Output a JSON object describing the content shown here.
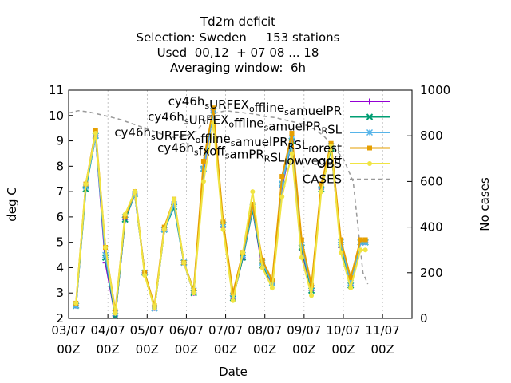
{
  "chart_data": {
    "type": "line",
    "title_lines": [
      "Td2m deficit",
      "Selection: Sweden     153 stations",
      "Used  00,12  + 07 08 ... 18",
      "Averaging window:  6h"
    ],
    "xlabel": "Date",
    "ylabel": "deg C",
    "y2label": "No cases",
    "ylim": [
      2,
      11
    ],
    "y2lim": [
      0,
      1000
    ],
    "xlim_days": [
      0,
      35
    ],
    "x_tick_labels": [
      {
        "day": 0,
        "l1": "03/07",
        "l2": "00Z"
      },
      {
        "day": 4,
        "l1": "04/07",
        "l2": "00Z"
      },
      {
        "day": 8,
        "l1": "05/07",
        "l2": "00Z"
      },
      {
        "day": 12,
        "l1": "06/07",
        "l2": "00Z"
      },
      {
        "day": 16,
        "l1": "07/07",
        "l2": "00Z"
      },
      {
        "day": 20,
        "l1": "08/07",
        "l2": "00Z"
      },
      {
        "day": 24,
        "l1": "09/07",
        "l2": "00Z"
      },
      {
        "day": 28,
        "l1": "10/07",
        "l2": "00Z"
      },
      {
        "day": 32,
        "l1": "11/07",
        "l2": "00Z"
      }
    ],
    "y_ticks": [
      2,
      3,
      4,
      5,
      6,
      7,
      8,
      9,
      10,
      11
    ],
    "y2_ticks": [
      0,
      200,
      400,
      600,
      800,
      1000
    ],
    "x": [
      0.75,
      1.75,
      2.75,
      3.75,
      4.75,
      5.75,
      6.75,
      7.75,
      8.75,
      9.75,
      10.75,
      11.75,
      12.75,
      13.75,
      14.75,
      15.75,
      16.75,
      17.75,
      18.75,
      19.75,
      20.75,
      21.75,
      22.75,
      23.75,
      24.75,
      25.75,
      26.75,
      27.75,
      28.75,
      29.75,
      30.25
    ],
    "series": [
      {
        "name": "cy46h_sURFEX_offline_samuelPR",
        "color": "#9400d3",
        "marker": "plus",
        "values": [
          2.5,
          7.2,
          9.2,
          4.2,
          2.1,
          5.9,
          6.9,
          3.8,
          2.4,
          5.5,
          6.5,
          4.2,
          3.0,
          7.8,
          10.2,
          5.6,
          2.8,
          4.4,
          6.3,
          4.0,
          3.4,
          7.2,
          9.0,
          4.7,
          3.1,
          7.1,
          8.7,
          4.8,
          3.3,
          5.0,
          5.0
        ]
      },
      {
        "name": "cy46h_sURFEX_offline_samuelPR_RSL",
        "color": "#009e73",
        "marker": "x",
        "values": [
          2.5,
          7.1,
          9.2,
          4.4,
          2.1,
          5.9,
          6.9,
          3.8,
          2.4,
          5.5,
          6.4,
          4.2,
          3.0,
          7.9,
          10.2,
          5.7,
          2.8,
          4.4,
          6.3,
          4.1,
          3.4,
          7.3,
          9.0,
          4.8,
          3.1,
          7.1,
          8.7,
          4.9,
          3.3,
          5.0,
          5.0
        ]
      },
      {
        "name": "cy46h_sURFEX_offline_samuelPR_RSL_forest",
        "color": "#56b4e9",
        "marker": "star",
        "values": [
          2.5,
          7.2,
          9.2,
          4.5,
          2.2,
          6.0,
          6.9,
          3.8,
          2.4,
          5.5,
          6.5,
          4.2,
          3.1,
          7.9,
          10.2,
          5.7,
          2.9,
          4.5,
          6.4,
          4.2,
          3.4,
          7.3,
          9.1,
          4.9,
          3.2,
          7.2,
          8.8,
          5.0,
          3.4,
          5.0,
          5.0
        ]
      },
      {
        "name": "cy46h_sfxoff_samPR_RSL_lowvegoff",
        "color": "#e69f00",
        "marker": "square",
        "values": [
          2.6,
          7.3,
          9.4,
          4.8,
          2.3,
          6.0,
          7.0,
          3.8,
          2.5,
          5.6,
          6.7,
          4.2,
          3.1,
          8.2,
          10.3,
          5.8,
          3.0,
          4.6,
          6.5,
          4.3,
          3.5,
          7.6,
          9.3,
          5.1,
          3.3,
          7.3,
          8.9,
          5.1,
          3.6,
          5.1,
          5.1
        ]
      },
      {
        "name": "OBS",
        "color": "#f0e442",
        "marker": "circle",
        "values": [
          2.6,
          7.3,
          9.3,
          4.8,
          2.2,
          6.1,
          7.0,
          3.7,
          2.4,
          5.5,
          6.7,
          4.2,
          3.0,
          7.4,
          9.7,
          5.5,
          2.7,
          4.6,
          7.0,
          4.0,
          3.2,
          6.8,
          8.5,
          4.4,
          2.9,
          7.0,
          8.8,
          4.6,
          3.2,
          4.7,
          4.7
        ]
      }
    ],
    "cases": {
      "name": "CASES",
      "color": "#999999",
      "x": [
        0.0,
        1.0,
        2.0,
        3.0,
        4.0,
        5.0,
        6.0,
        7.0,
        8.0,
        9.0,
        10.0,
        11.0,
        12.0,
        13.0,
        14.0,
        15.0,
        16.0,
        17.0,
        18.0,
        19.0,
        20.0,
        21.0,
        22.0,
        23.0,
        24.0,
        25.0,
        26.0,
        27.0,
        28.0,
        29.0,
        29.5,
        30.0,
        30.5
      ],
      "values": [
        900,
        910,
        905,
        895,
        885,
        875,
        860,
        845,
        830,
        815,
        800,
        790,
        800,
        820,
        870,
        900,
        910,
        905,
        900,
        895,
        885,
        880,
        870,
        860,
        850,
        830,
        800,
        750,
        700,
        600,
        400,
        200,
        150
      ]
    }
  }
}
